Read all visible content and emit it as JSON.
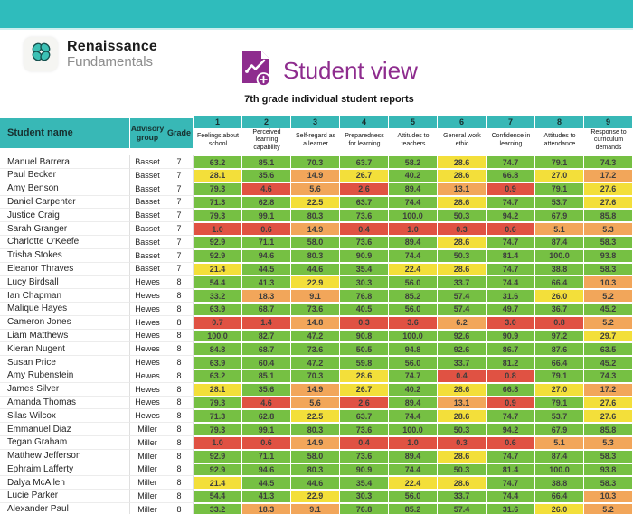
{
  "brand": {
    "name": "Renaissance",
    "suite": "Fundamentals"
  },
  "report": {
    "title": "Student view",
    "subtitle": "7th grade individual student reports"
  },
  "icons": {
    "logo": "clover-flower-icon",
    "report": "line-chart-document-add-icon"
  },
  "palette": {
    "banner_teal": "#2fbcbc",
    "header_teal": "#38b8b6",
    "title_purple": "#8e2c8e",
    "bands": [
      {
        "max": 5,
        "color": "#e05243",
        "label": "red"
      },
      {
        "max": 20,
        "color": "#f2a65a",
        "label": "orange"
      },
      {
        "max": 30,
        "color": "#f3df3a",
        "label": "yellow"
      },
      {
        "max": 1000,
        "color": "#76c043",
        "label": "green"
      }
    ]
  },
  "table": {
    "left_headers": [
      "Student name",
      "Advisory group",
      "Grade"
    ],
    "metrics": [
      {
        "num": "1",
        "label": "Feelings about school"
      },
      {
        "num": "2",
        "label": "Perceived learning capability"
      },
      {
        "num": "3",
        "label": "Self-regard as a learner"
      },
      {
        "num": "4",
        "label": "Preparedness for learning"
      },
      {
        "num": "5",
        "label": "Attitudes to teachers"
      },
      {
        "num": "6",
        "label": "General work ethic"
      },
      {
        "num": "7",
        "label": "Confidence in learning"
      },
      {
        "num": "8",
        "label": "Attitudes to attendance"
      },
      {
        "num": "9",
        "label": "Response to curriculum demands"
      }
    ],
    "rows": [
      {
        "name": "Manuel Barrera",
        "advisory": "Basset",
        "grade": "7",
        "values": [
          "63.2",
          "85.1",
          "70.3",
          "63.7",
          "58.2",
          "28.6",
          "74.7",
          "79.1",
          "74.3"
        ]
      },
      {
        "name": "Paul Becker",
        "advisory": "Basset",
        "grade": "7",
        "values": [
          "28.1",
          "35.6",
          "14.9",
          "26.7",
          "40.2",
          "28.6",
          "66.8",
          "27.0",
          "17.2"
        ]
      },
      {
        "name": "Amy Benson",
        "advisory": "Basset",
        "grade": "7",
        "values": [
          "79.3",
          "4.6",
          "5.6",
          "2.6",
          "89.4",
          "13.1",
          "0.9",
          "79.1",
          "27.6"
        ]
      },
      {
        "name": "Daniel Carpenter",
        "advisory": "Basset",
        "grade": "7",
        "values": [
          "71.3",
          "62.8",
          "22.5",
          "63.7",
          "74.4",
          "28.6",
          "74.7",
          "53.7",
          "27.6"
        ]
      },
      {
        "name": "Justice Craig",
        "advisory": "Basset",
        "grade": "7",
        "values": [
          "79.3",
          "99.1",
          "80.3",
          "73.6",
          "100.0",
          "50.3",
          "94.2",
          "67.9",
          "85.8"
        ]
      },
      {
        "name": "Sarah Granger",
        "advisory": "Basset",
        "grade": "7",
        "values": [
          "1.0",
          "0.6",
          "14.9",
          "0.4",
          "1.0",
          "0.3",
          "0.6",
          "5.1",
          "5.3"
        ]
      },
      {
        "name": "Charlotte O'Keefe",
        "advisory": "Basset",
        "grade": "7",
        "values": [
          "92.9",
          "71.1",
          "58.0",
          "73.6",
          "89.4",
          "28.6",
          "74.7",
          "87.4",
          "58.3"
        ]
      },
      {
        "name": "Trisha Stokes",
        "advisory": "Basset",
        "grade": "7",
        "values": [
          "92.9",
          "94.6",
          "80.3",
          "90.9",
          "74.4",
          "50.3",
          "81.4",
          "100.0",
          "93.8"
        ]
      },
      {
        "name": "Eleanor Thraves",
        "advisory": "Basset",
        "grade": "7",
        "values": [
          "21.4",
          "44.5",
          "44.6",
          "35.4",
          "22.4",
          "28.6",
          "74.7",
          "38.8",
          "58.3"
        ]
      },
      {
        "name": "Lucy Birdsall",
        "advisory": "Hewes",
        "grade": "8",
        "values": [
          "54.4",
          "41.3",
          "22.9",
          "30.3",
          "56.0",
          "33.7",
          "74.4",
          "66.4",
          "10.3"
        ]
      },
      {
        "name": "Ian Chapman",
        "advisory": "Hewes",
        "grade": "8",
        "values": [
          "33.2",
          "18.3",
          "9.1",
          "76.8",
          "85.2",
          "57.4",
          "31.6",
          "26.0",
          "5.2"
        ]
      },
      {
        "name": "Malique Hayes",
        "advisory": "Hewes",
        "grade": "8",
        "values": [
          "63.9",
          "68.7",
          "73.6",
          "40.5",
          "56.0",
          "57.4",
          "49.7",
          "36.7",
          "45.2"
        ]
      },
      {
        "name": "Cameron Jones",
        "advisory": "Hewes",
        "grade": "8",
        "values": [
          "0.7",
          "1.4",
          "14.8",
          "0.3",
          "3.6",
          "6.2",
          "3.0",
          "0.8",
          "5.2"
        ]
      },
      {
        "name": "Liam Matthews",
        "advisory": "Hewes",
        "grade": "8",
        "values": [
          "100.0",
          "82.7",
          "47.2",
          "90.8",
          "100.0",
          "92.6",
          "90.9",
          "97.2",
          "29.7"
        ]
      },
      {
        "name": "Kieran Nugent",
        "advisory": "Hewes",
        "grade": "8",
        "values": [
          "84.8",
          "68.7",
          "73.6",
          "50.5",
          "94.8",
          "92.6",
          "86.7",
          "87.6",
          "63.5"
        ]
      },
      {
        "name": "Susan Price",
        "advisory": "Hewes",
        "grade": "8",
        "values": [
          "63.9",
          "60.4",
          "47.2",
          "59.8",
          "56.0",
          "33.7",
          "81.2",
          "66.4",
          "45.2"
        ]
      },
      {
        "name": "Amy Rubenstein",
        "advisory": "Hewes",
        "grade": "8",
        "values": [
          "63.2",
          "85.1",
          "70.3",
          "28.6",
          "74.7",
          "0.4",
          "0.8",
          "79.1",
          "74.3"
        ]
      },
      {
        "name": "James Silver",
        "advisory": "Hewes",
        "grade": "8",
        "values": [
          "28.1",
          "35.6",
          "14.9",
          "26.7",
          "40.2",
          "28.6",
          "66.8",
          "27.0",
          "17.2"
        ]
      },
      {
        "name": "Amanda Thomas",
        "advisory": "Hewes",
        "grade": "8",
        "values": [
          "79.3",
          "4.6",
          "5.6",
          "2.6",
          "89.4",
          "13.1",
          "0.9",
          "79.1",
          "27.6"
        ]
      },
      {
        "name": "Silas Wilcox",
        "advisory": "Hewes",
        "grade": "8",
        "values": [
          "71.3",
          "62.8",
          "22.5",
          "63.7",
          "74.4",
          "28.6",
          "74.7",
          "53.7",
          "27.6"
        ]
      },
      {
        "name": "Emmanuel Diaz",
        "advisory": "Miller",
        "grade": "8",
        "values": [
          "79.3",
          "99.1",
          "80.3",
          "73.6",
          "100.0",
          "50.3",
          "94.2",
          "67.9",
          "85.8"
        ]
      },
      {
        "name": "Tegan Graham",
        "advisory": "Miller",
        "grade": "8",
        "values": [
          "1.0",
          "0.6",
          "14.9",
          "0.4",
          "1.0",
          "0.3",
          "0.6",
          "5.1",
          "5.3"
        ]
      },
      {
        "name": "Matthew Jefferson",
        "advisory": "Miller",
        "grade": "8",
        "values": [
          "92.9",
          "71.1",
          "58.0",
          "73.6",
          "89.4",
          "28.6",
          "74.7",
          "87.4",
          "58.3"
        ]
      },
      {
        "name": "Ephraim Lafferty",
        "advisory": "Miller",
        "grade": "8",
        "values": [
          "92.9",
          "94.6",
          "80.3",
          "90.9",
          "74.4",
          "50.3",
          "81.4",
          "100.0",
          "93.8"
        ]
      },
      {
        "name": "Dalya McAllen",
        "advisory": "Miller",
        "grade": "8",
        "values": [
          "21.4",
          "44.5",
          "44.6",
          "35.4",
          "22.4",
          "28.6",
          "74.7",
          "38.8",
          "58.3"
        ]
      },
      {
        "name": "Lucie Parker",
        "advisory": "Miller",
        "grade": "8",
        "values": [
          "54.4",
          "41.3",
          "22.9",
          "30.3",
          "56.0",
          "33.7",
          "74.4",
          "66.4",
          "10.3"
        ]
      },
      {
        "name": "Alexander Paul",
        "advisory": "Miller",
        "grade": "8",
        "values": [
          "33.2",
          "18.3",
          "9.1",
          "76.8",
          "85.2",
          "57.4",
          "31.6",
          "26.0",
          "5.2"
        ]
      }
    ]
  }
}
